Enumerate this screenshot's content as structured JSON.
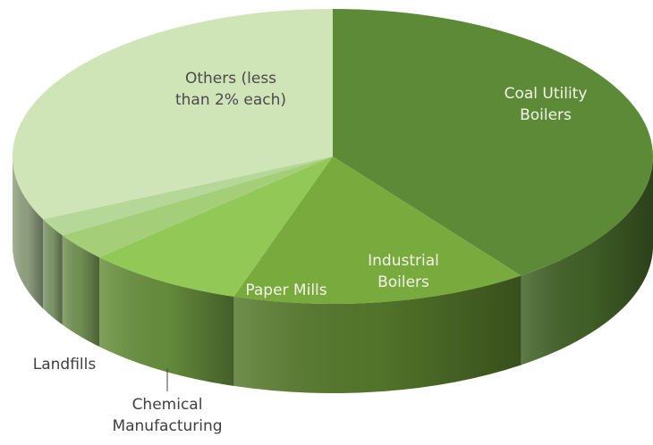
{
  "chart_data": {
    "type": "pie",
    "title": "",
    "categories": [
      "Coal Utility Boilers",
      "Industrial Boilers",
      "Paper Mills",
      "Chemical Manufacturing",
      "Landfills",
      "Others (less than 2% each)"
    ],
    "values": [
      40,
      15,
      8,
      3,
      2,
      32
    ],
    "labels": [
      {
        "lines": [
          "Coal Utility",
          "Boilers"
        ]
      },
      {
        "lines": [
          "Industrial",
          "Boilers"
        ]
      },
      {
        "lines": [
          "Paper Mills"
        ]
      },
      {
        "lines": [
          "Chemical",
          "Manufacturing"
        ]
      },
      {
        "lines": [
          "Landfills"
        ]
      },
      {
        "lines": [
          "Others (less",
          "than 2% each)"
        ]
      }
    ],
    "colors": [
      "#5d8a37",
      "#78aa3d",
      "#92c956",
      "#a4cf78",
      "#b5d797",
      "#cfe5b7"
    ],
    "label_colors": [
      "#f2f6ea",
      "#f2f6ea",
      "#f2f6ea",
      "#404040",
      "#404040",
      "#4a4a4a"
    ],
    "legend": "none",
    "style": "3d"
  }
}
